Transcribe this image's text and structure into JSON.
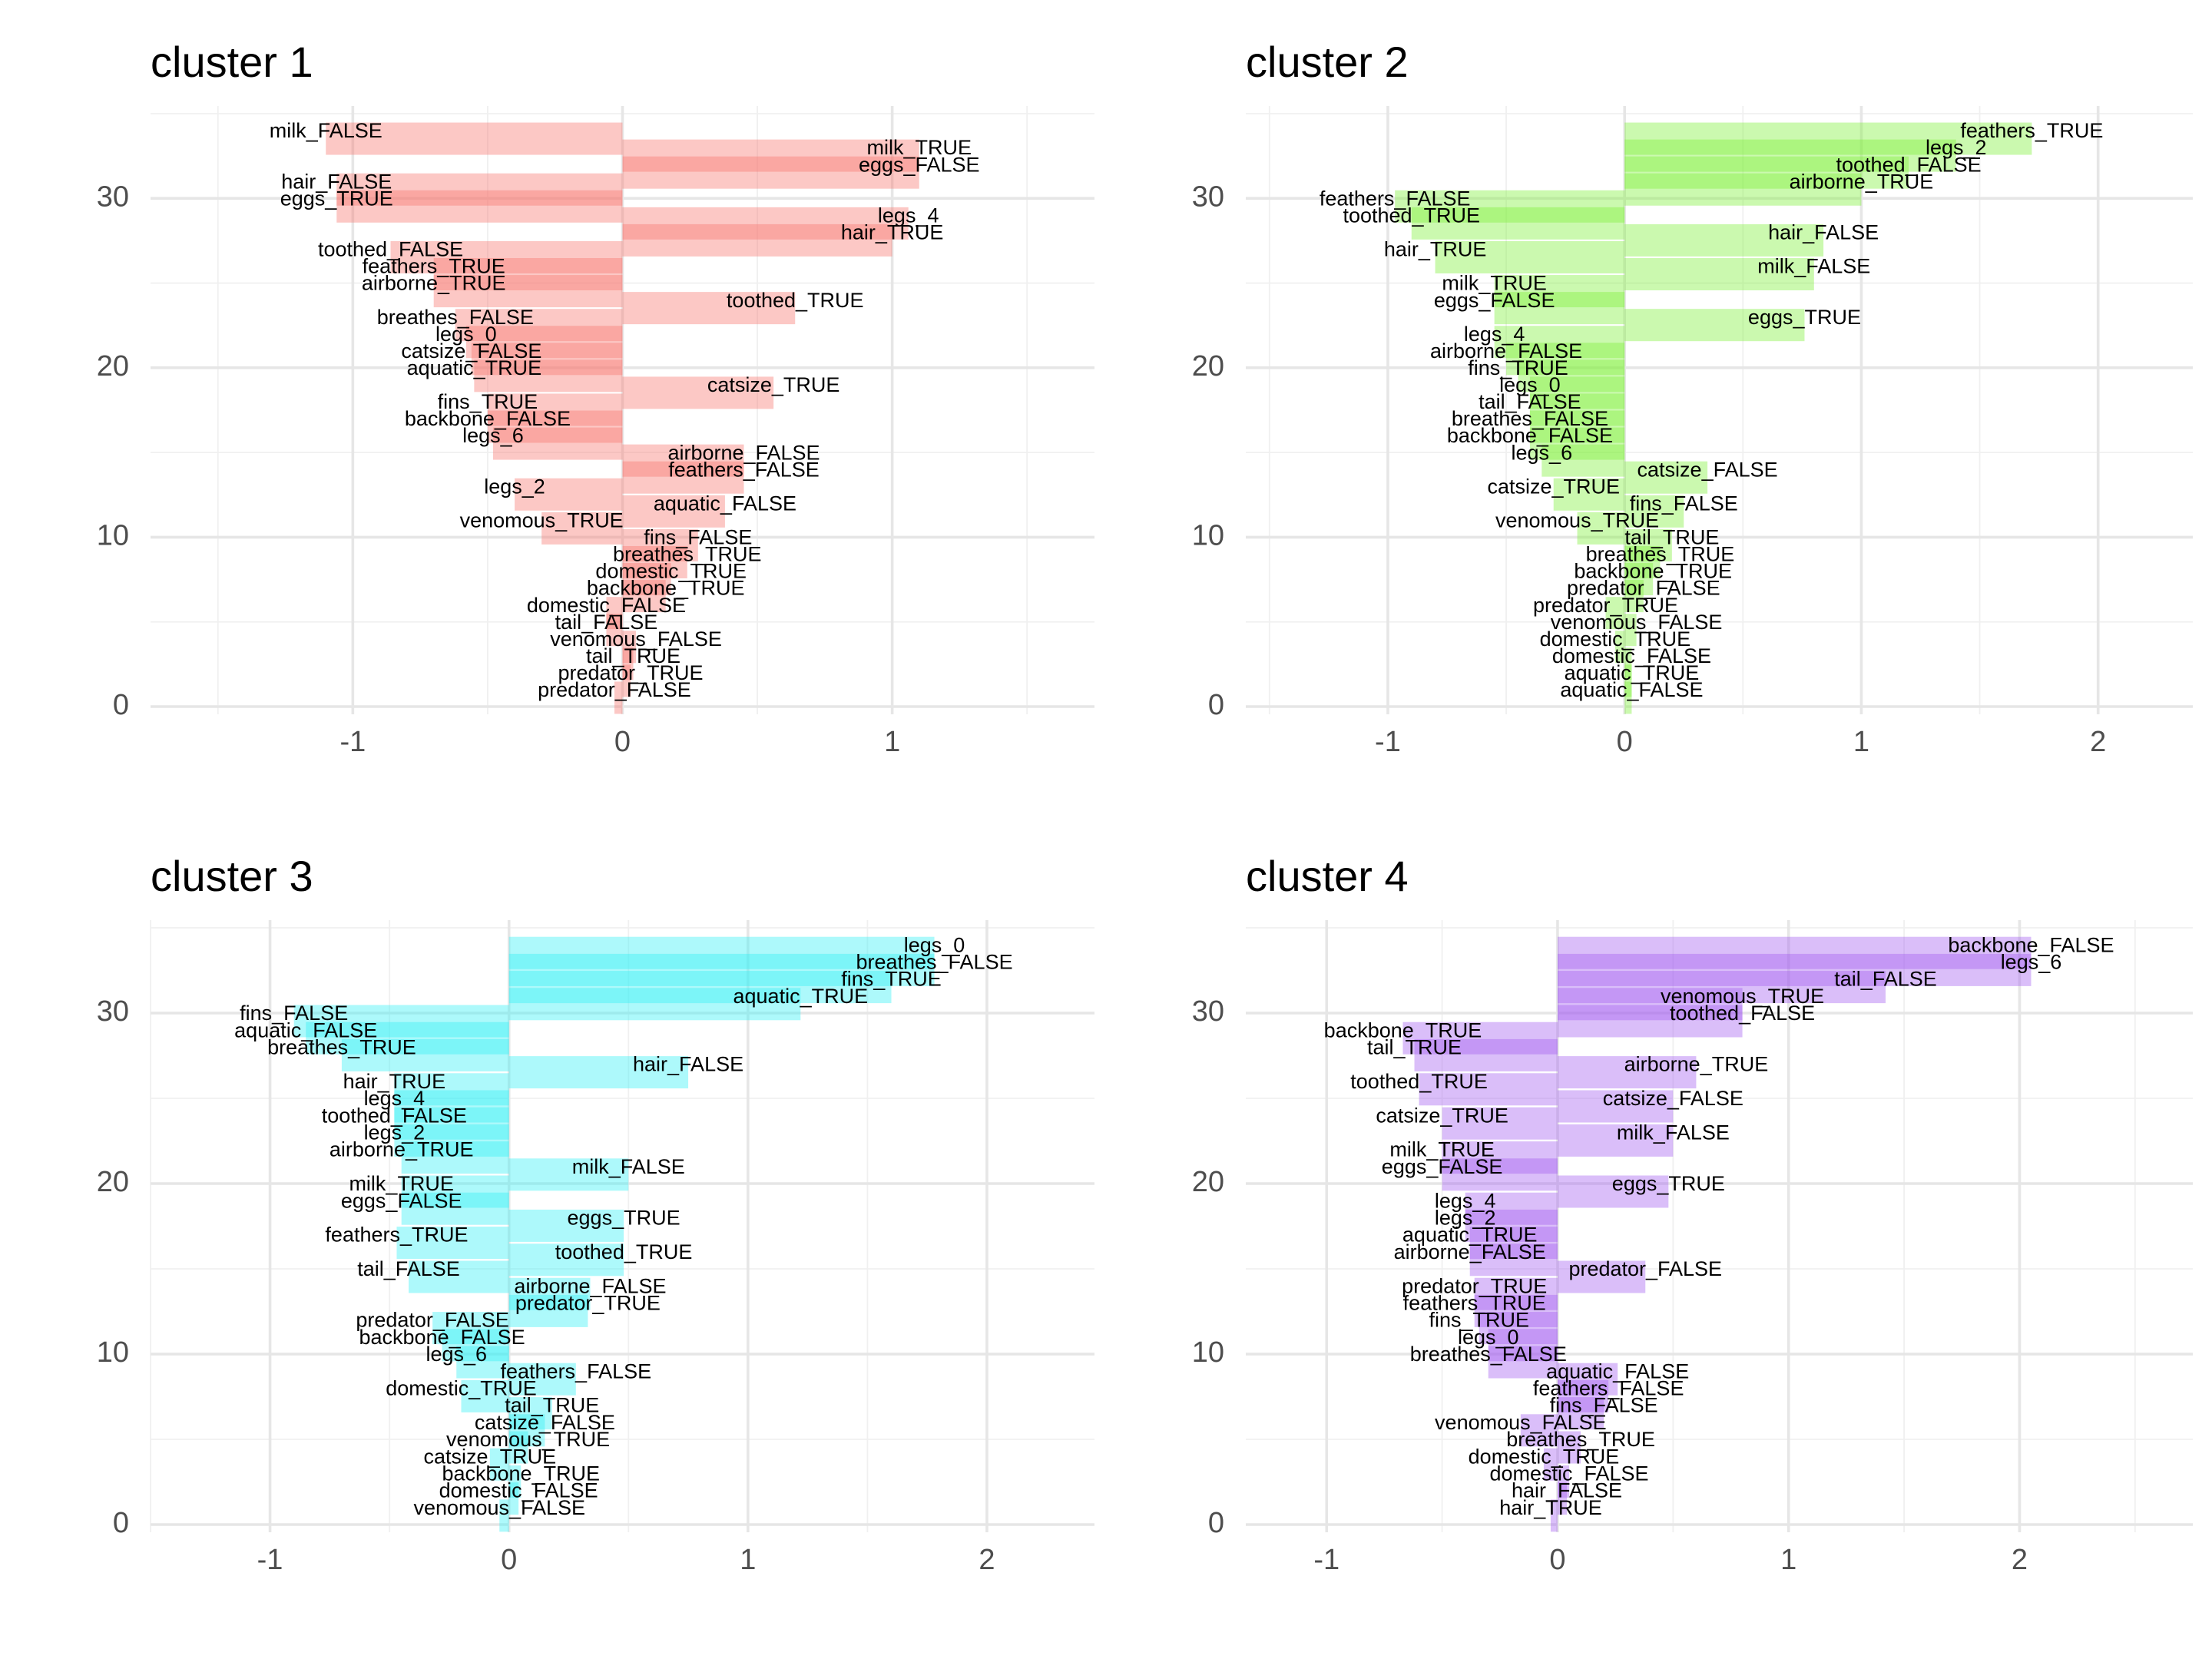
{
  "chart_data": [
    {
      "type": "bar",
      "title": "cluster 1",
      "color": "#f8766d",
      "xlim": [
        -1.75,
        1.75
      ],
      "ylim": [
        0,
        35
      ],
      "x_ticks": [
        -1,
        0,
        1
      ],
      "x_tick_labels": [
        "-1",
        "0",
        "1"
      ],
      "y_ticks": [
        0,
        10,
        20,
        30
      ],
      "y_tick_labels": [
        "0",
        "10",
        "20",
        "30"
      ],
      "bars": [
        {
          "label": "milk_FALSE",
          "value": -1.1
        },
        {
          "label": "milk_TRUE",
          "value": 1.1
        },
        {
          "label": "eggs_FALSE",
          "value": 1.1
        },
        {
          "label": "hair_FALSE",
          "value": -1.06
        },
        {
          "label": "eggs_TRUE",
          "value": -1.06
        },
        {
          "label": "legs_4",
          "value": 1.06
        },
        {
          "label": "hair_TRUE",
          "value": 1.0
        },
        {
          "label": "toothed_FALSE",
          "value": -0.86
        },
        {
          "label": "feathers_TRUE",
          "value": -0.7
        },
        {
          "label": "airborne_TRUE",
          "value": -0.7
        },
        {
          "label": "toothed_TRUE",
          "value": 0.64
        },
        {
          "label": "breathes_FALSE",
          "value": -0.62
        },
        {
          "label": "legs_0",
          "value": -0.58
        },
        {
          "label": "catsize_FALSE",
          "value": -0.56
        },
        {
          "label": "aquatic_TRUE",
          "value": -0.55
        },
        {
          "label": "catsize_TRUE",
          "value": 0.56
        },
        {
          "label": "fins_TRUE",
          "value": -0.5
        },
        {
          "label": "backbone_FALSE",
          "value": -0.5
        },
        {
          "label": "legs_6",
          "value": -0.48
        },
        {
          "label": "airborne_FALSE",
          "value": 0.45
        },
        {
          "label": "feathers_FALSE",
          "value": 0.45
        },
        {
          "label": "legs_2",
          "value": -0.4
        },
        {
          "label": "aquatic_FALSE",
          "value": 0.38
        },
        {
          "label": "venomous_TRUE",
          "value": -0.3
        },
        {
          "label": "fins_FALSE",
          "value": 0.28
        },
        {
          "label": "breathes_TRUE",
          "value": 0.24
        },
        {
          "label": "domestic_TRUE",
          "value": 0.18
        },
        {
          "label": "backbone_TRUE",
          "value": 0.16
        },
        {
          "label": "domestic_FALSE",
          "value": -0.06
        },
        {
          "label": "tail_FALSE",
          "value": -0.06
        },
        {
          "label": "venomous_FALSE",
          "value": 0.05
        },
        {
          "label": "tail_TRUE",
          "value": 0.04
        },
        {
          "label": "predator_TRUE",
          "value": 0.03
        },
        {
          "label": "predator_FALSE",
          "value": -0.03
        }
      ]
    },
    {
      "type": "bar",
      "title": "cluster 2",
      "color": "#7cf037",
      "xlim": [
        -1.6,
        2.4
      ],
      "ylim": [
        0,
        35
      ],
      "x_ticks": [
        -1,
        0,
        1,
        2
      ],
      "x_tick_labels": [
        "-1",
        "0",
        "1",
        "2"
      ],
      "y_ticks": [
        0,
        10,
        20,
        30
      ],
      "y_tick_labels": [
        "0",
        "10",
        "20",
        "30"
      ],
      "bars": [
        {
          "label": "feathers_TRUE",
          "value": 1.72
        },
        {
          "label": "legs_2",
          "value": 1.4
        },
        {
          "label": "toothed_FALSE",
          "value": 1.2
        },
        {
          "label": "airborne_TRUE",
          "value": 1.0
        },
        {
          "label": "feathers_FALSE",
          "value": -0.97
        },
        {
          "label": "toothed_TRUE",
          "value": -0.9
        },
        {
          "label": "hair_FALSE",
          "value": 0.84
        },
        {
          "label": "hair_TRUE",
          "value": -0.8
        },
        {
          "label": "milk_FALSE",
          "value": 0.8
        },
        {
          "label": "milk_TRUE",
          "value": -0.55
        },
        {
          "label": "eggs_FALSE",
          "value": -0.55
        },
        {
          "label": "eggs_TRUE",
          "value": 0.76
        },
        {
          "label": "legs_4",
          "value": -0.55
        },
        {
          "label": "airborne_FALSE",
          "value": -0.5
        },
        {
          "label": "fins_TRUE",
          "value": -0.45
        },
        {
          "label": "legs_0",
          "value": -0.4
        },
        {
          "label": "tail_FALSE",
          "value": -0.4
        },
        {
          "label": "breathes_FALSE",
          "value": -0.4
        },
        {
          "label": "backbone_FALSE",
          "value": -0.4
        },
        {
          "label": "legs_6",
          "value": -0.35
        },
        {
          "label": "catsize_FALSE",
          "value": 0.35
        },
        {
          "label": "catsize_TRUE",
          "value": -0.3
        },
        {
          "label": "fins_FALSE",
          "value": 0.25
        },
        {
          "label": "venomous_TRUE",
          "value": -0.2
        },
        {
          "label": "tail_TRUE",
          "value": 0.2
        },
        {
          "label": "breathes_TRUE",
          "value": 0.15
        },
        {
          "label": "backbone_TRUE",
          "value": 0.12
        },
        {
          "label": "predator_FALSE",
          "value": 0.08
        },
        {
          "label": "predator_TRUE",
          "value": -0.08
        },
        {
          "label": "venomous_FALSE",
          "value": 0.05
        },
        {
          "label": "domestic_TRUE",
          "value": -0.04
        },
        {
          "label": "domestic_FALSE",
          "value": 0.03
        },
        {
          "label": "aquatic_TRUE",
          "value": 0.03
        },
        {
          "label": "aquatic_FALSE",
          "value": 0.03
        }
      ]
    },
    {
      "type": "bar",
      "title": "cluster 3",
      "color": "#33f0f5",
      "xlim": [
        -1.5,
        2.45
      ],
      "ylim": [
        0,
        35
      ],
      "x_ticks": [
        -1,
        0,
        1,
        2
      ],
      "x_tick_labels": [
        "-1",
        "0",
        "1",
        "2"
      ],
      "y_ticks": [
        0,
        10,
        20,
        30
      ],
      "y_tick_labels": [
        "0",
        "10",
        "20",
        "30"
      ],
      "bars": [
        {
          "label": "legs_0",
          "value": 1.78
        },
        {
          "label": "breathes_FALSE",
          "value": 1.78
        },
        {
          "label": "fins_TRUE",
          "value": 1.6
        },
        {
          "label": "aquatic_TRUE",
          "value": 1.22
        },
        {
          "label": "fins_FALSE",
          "value": -0.9
        },
        {
          "label": "aquatic_FALSE",
          "value": -0.85
        },
        {
          "label": "breathes_TRUE",
          "value": -0.7
        },
        {
          "label": "hair_FALSE",
          "value": 0.75
        },
        {
          "label": "hair_TRUE",
          "value": -0.48
        },
        {
          "label": "legs_4",
          "value": -0.48
        },
        {
          "label": "toothed_FALSE",
          "value": -0.48
        },
        {
          "label": "legs_2",
          "value": -0.48
        },
        {
          "label": "airborne_TRUE",
          "value": -0.45
        },
        {
          "label": "milk_FALSE",
          "value": 0.5
        },
        {
          "label": "milk_TRUE",
          "value": -0.45
        },
        {
          "label": "eggs_FALSE",
          "value": -0.45
        },
        {
          "label": "eggs_TRUE",
          "value": 0.48
        },
        {
          "label": "feathers_TRUE",
          "value": -0.47
        },
        {
          "label": "toothed_TRUE",
          "value": 0.48
        },
        {
          "label": "tail_FALSE",
          "value": -0.42
        },
        {
          "label": "airborne_FALSE",
          "value": 0.34
        },
        {
          "label": "predator_TRUE",
          "value": 0.33
        },
        {
          "label": "predator_FALSE",
          "value": -0.32
        },
        {
          "label": "backbone_FALSE",
          "value": -0.28
        },
        {
          "label": "legs_6",
          "value": -0.22
        },
        {
          "label": "feathers_FALSE",
          "value": 0.28
        },
        {
          "label": "domestic_TRUE",
          "value": -0.2
        },
        {
          "label": "tail_TRUE",
          "value": 0.18
        },
        {
          "label": "catsize_FALSE",
          "value": 0.15
        },
        {
          "label": "venomous_TRUE",
          "value": 0.08
        },
        {
          "label": "catsize_TRUE",
          "value": -0.08
        },
        {
          "label": "backbone_TRUE",
          "value": 0.05
        },
        {
          "label": "domestic_FALSE",
          "value": 0.04
        },
        {
          "label": "venomous_FALSE",
          "value": -0.04
        }
      ]
    },
    {
      "type": "bar",
      "title": "cluster 4",
      "color": "#a25df0",
      "xlim": [
        -1.35,
        2.75
      ],
      "ylim": [
        0,
        35
      ],
      "x_ticks": [
        -1,
        0,
        1,
        2
      ],
      "x_tick_labels": [
        "-1",
        "0",
        "1",
        "2"
      ],
      "y_ticks": [
        0,
        10,
        20,
        30
      ],
      "y_tick_labels": [
        "0",
        "10",
        "20",
        "30"
      ],
      "bars": [
        {
          "label": "backbone_FALSE",
          "value": 2.05
        },
        {
          "label": "legs_6",
          "value": 2.05
        },
        {
          "label": "tail_FALSE",
          "value": 1.42
        },
        {
          "label": "venomous_TRUE",
          "value": 0.8
        },
        {
          "label": "toothed_FALSE",
          "value": 0.8
        },
        {
          "label": "backbone_TRUE",
          "value": -0.67
        },
        {
          "label": "tail_TRUE",
          "value": -0.62
        },
        {
          "label": "airborne_TRUE",
          "value": 0.6
        },
        {
          "label": "toothed_TRUE",
          "value": -0.6
        },
        {
          "label": "catsize_FALSE",
          "value": 0.5
        },
        {
          "label": "catsize_TRUE",
          "value": -0.5
        },
        {
          "label": "milk_FALSE",
          "value": 0.5
        },
        {
          "label": "milk_TRUE",
          "value": -0.5
        },
        {
          "label": "eggs_FALSE",
          "value": -0.5
        },
        {
          "label": "eggs_TRUE",
          "value": 0.48
        },
        {
          "label": "legs_4",
          "value": -0.4
        },
        {
          "label": "legs_2",
          "value": -0.4
        },
        {
          "label": "aquatic_TRUE",
          "value": -0.38
        },
        {
          "label": "airborne_FALSE",
          "value": -0.38
        },
        {
          "label": "predator_FALSE",
          "value": 0.38
        },
        {
          "label": "predator_TRUE",
          "value": -0.36
        },
        {
          "label": "feathers_TRUE",
          "value": -0.36
        },
        {
          "label": "fins_TRUE",
          "value": -0.34
        },
        {
          "label": "legs_0",
          "value": -0.3
        },
        {
          "label": "breathes_FALSE",
          "value": -0.3
        },
        {
          "label": "aquatic_FALSE",
          "value": 0.26
        },
        {
          "label": "feathers_FALSE",
          "value": 0.22
        },
        {
          "label": "fins_FALSE",
          "value": 0.2
        },
        {
          "label": "venomous_FALSE",
          "value": -0.16
        },
        {
          "label": "breathes_TRUE",
          "value": 0.1
        },
        {
          "label": "domestic_TRUE",
          "value": -0.06
        },
        {
          "label": "domestic_FALSE",
          "value": 0.05
        },
        {
          "label": "hair_FALSE",
          "value": 0.04
        },
        {
          "label": "hair_TRUE",
          "value": -0.03
        }
      ]
    }
  ]
}
